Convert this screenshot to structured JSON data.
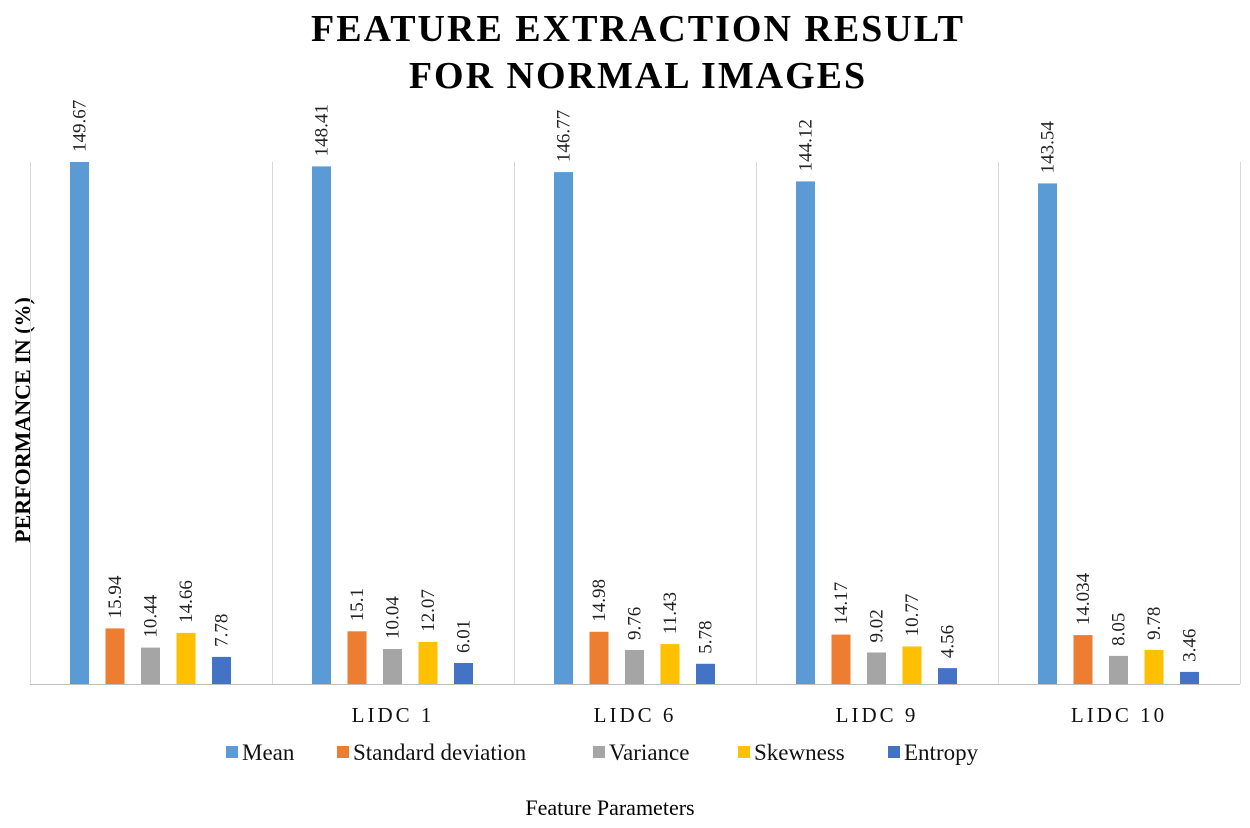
{
  "chart_data": {
    "type": "bar",
    "title_lines": [
      "FEATURE EXTRACTION RESULT",
      "FOR NORMAL IMAGES"
    ],
    "xlabel": "Feature Parameters",
    "ylabel": "PERFORMANCE IN (%)",
    "categories": [
      "",
      "LIDC  1",
      "LIDC  6",
      "LIDC  9",
      "LIDC  10"
    ],
    "series": [
      {
        "name": "Mean",
        "color": "#5B9BD5",
        "values": [
          149.67,
          148.41,
          146.77,
          144.12,
          143.54
        ],
        "labels": [
          "149.67",
          "148.41",
          "146.77",
          "144.12",
          "143.54"
        ]
      },
      {
        "name": "Standard deviation",
        "color": "#ED7D31",
        "values": [
          15.94,
          15.1,
          14.98,
          14.17,
          14.034
        ],
        "labels": [
          "15.94",
          "15.1",
          "14.98",
          "14.17",
          "14.034"
        ]
      },
      {
        "name": "Variance",
        "color": "#A5A5A5",
        "values": [
          10.44,
          10.04,
          9.76,
          9.02,
          8.05
        ],
        "labels": [
          "10.44",
          "10.04",
          "9.76",
          "9.02",
          "8.05"
        ]
      },
      {
        "name": "Skewness",
        "color": "#FFC000",
        "values": [
          14.66,
          12.07,
          11.43,
          10.77,
          9.78
        ],
        "labels": [
          "14.66",
          "12.07",
          "11.43",
          "10.77",
          "9.78"
        ]
      },
      {
        "name": "Entropy",
        "color": "#4472C4",
        "values": [
          7.78,
          6.01,
          5.78,
          4.56,
          3.46
        ],
        "labels": [
          "7.78",
          "6.01",
          "5.78",
          "4.56",
          "3.46"
        ]
      }
    ],
    "ylim": [
      0,
      160
    ],
    "grid": false,
    "legend_position": "bottom"
  }
}
